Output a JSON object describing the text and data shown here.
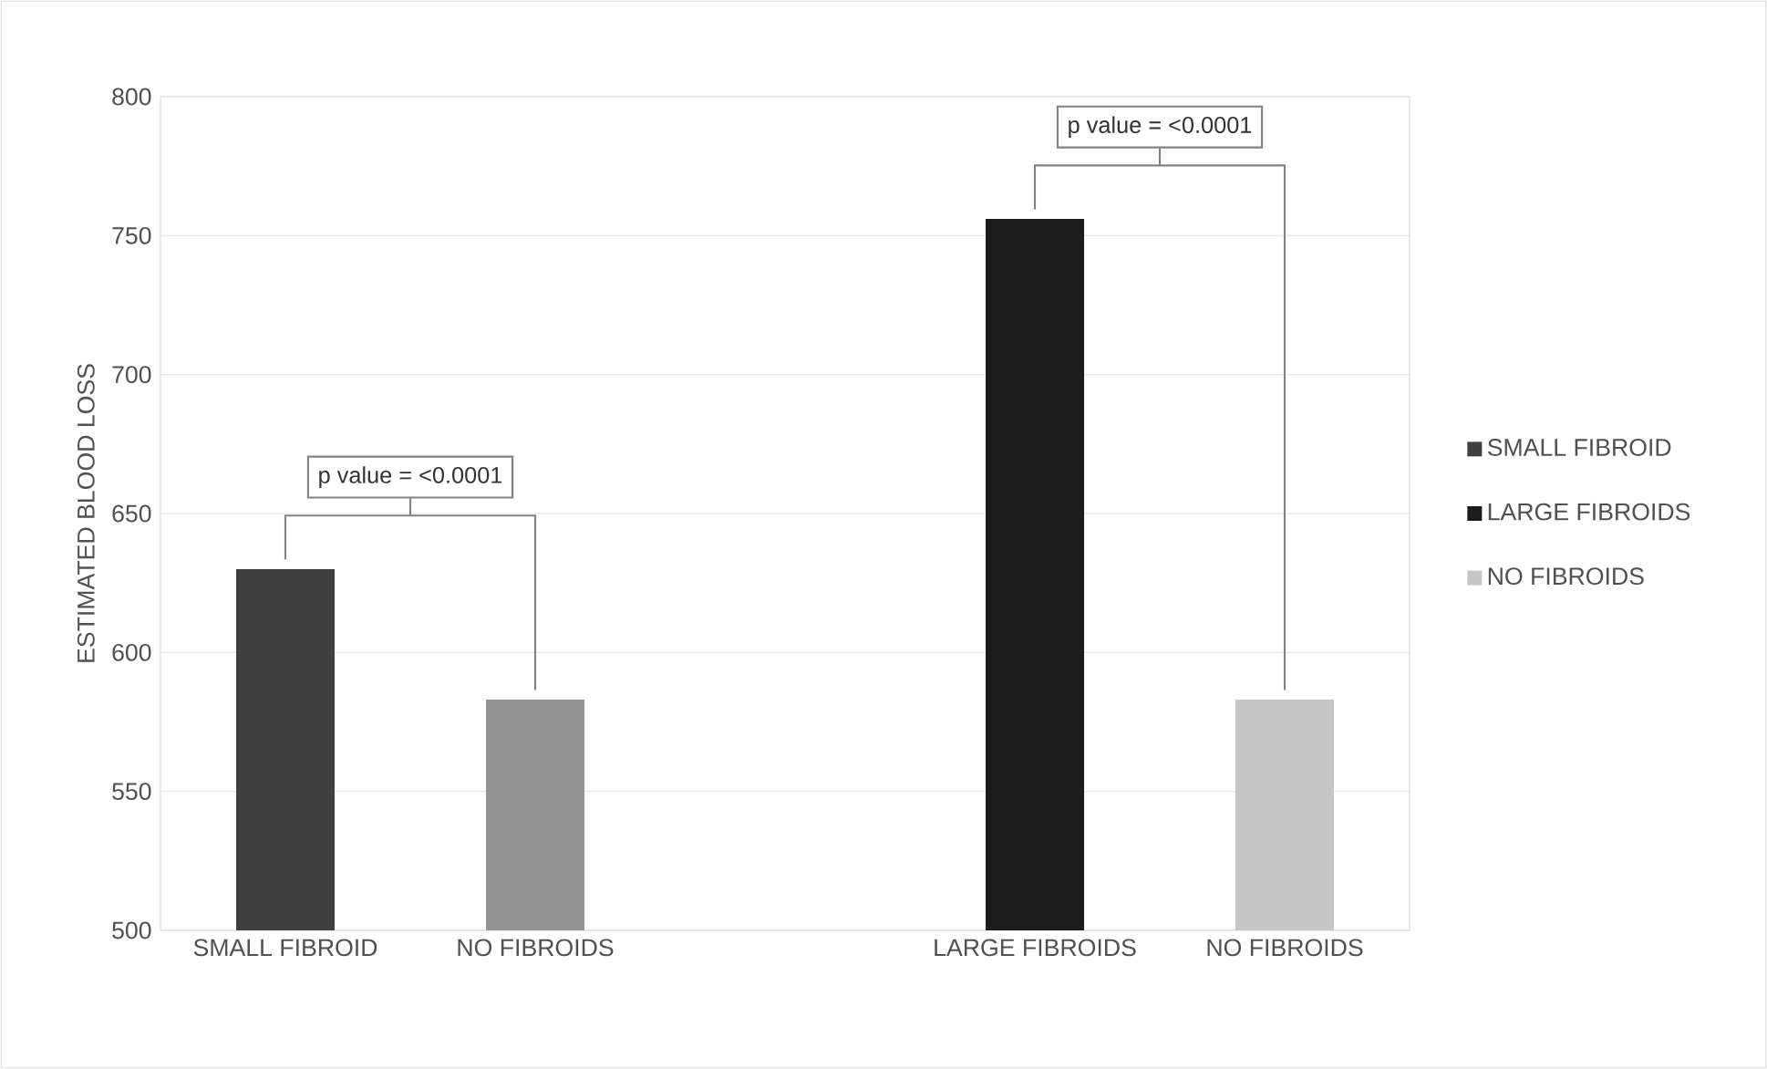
{
  "chart_data": {
    "type": "bar",
    "ylabel": "ESTIMATED BLOOD LOSS",
    "categories": [
      "SMALL FIBROID",
      "NO FIBROIDS",
      null,
      "LARGE FIBROIDS",
      "NO FIBROIDS"
    ],
    "series": [
      {
        "name": "SMALL FIBROID",
        "color": "#404040",
        "values": [
          630,
          null,
          null,
          null,
          null
        ]
      },
      {
        "name": "LARGE FIBROIDS",
        "color": "#1c1c1c",
        "values": [
          null,
          null,
          null,
          756,
          null
        ]
      },
      {
        "name": "NO FIBROIDS",
        "color": "#c6c6c6",
        "colors": [
          null,
          "#949494",
          null,
          null,
          "#c6c6c6"
        ],
        "values": [
          null,
          583,
          null,
          null,
          583
        ]
      }
    ],
    "ylim": [
      500,
      800
    ],
    "yticks": [
      500,
      550,
      600,
      650,
      700,
      750,
      800
    ],
    "grid": "y",
    "legend": "right",
    "annotations": [
      "p value = <0.0001",
      "p value = <0.0001"
    ]
  }
}
